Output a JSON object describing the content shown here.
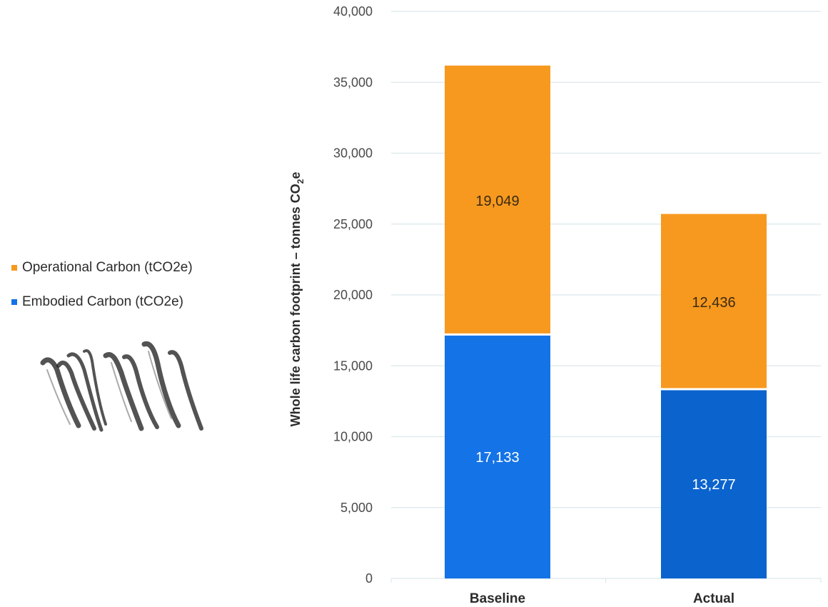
{
  "chart_data": {
    "type": "bar",
    "stacked": true,
    "categories": [
      "Baseline",
      "Actual"
    ],
    "series": [
      {
        "name": "Embodied Carbon (tCO2e)",
        "values": [
          17133,
          13277
        ],
        "color": "#1473e6",
        "labels": [
          "17,133",
          "13,277"
        ]
      },
      {
        "name": "Operational Carbon (tCO2e)",
        "values": [
          19049,
          12436
        ],
        "color": "#f7991f",
        "labels": [
          "19,049",
          "12,436"
        ]
      }
    ],
    "legend_order": [
      1,
      0
    ],
    "legend_position": "left",
    "ylim": [
      0,
      40000
    ],
    "yticks": [
      0,
      5000,
      10000,
      15000,
      20000,
      25000,
      30000,
      35000,
      40000
    ],
    "ytick_labels": [
      "0",
      "5,000",
      "10,000",
      "15,000",
      "20,000",
      "25,000",
      "30,000",
      "35,000",
      "40,000"
    ],
    "ylabel": "Whole life carbon footprint – tonnes CO",
    "ylabel_subscript": "2",
    "ylabel_suffix": "e",
    "xlabel": "",
    "title": "",
    "grid": true,
    "grid_color": "#dce8ec"
  }
}
